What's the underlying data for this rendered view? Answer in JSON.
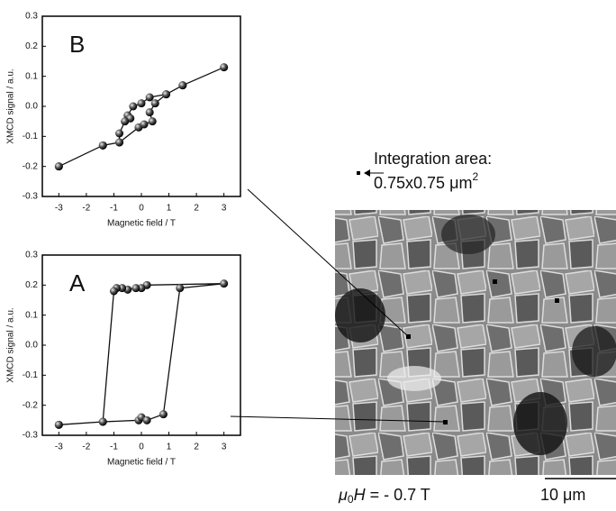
{
  "chart_data": [
    {
      "type": "line",
      "panel_label": "B",
      "x_label": "Magnetic field / T",
      "y_label": "XMCD signal / a.u.",
      "xlim": [
        -3.6,
        3.6
      ],
      "xticks": [
        -3,
        -2,
        -1,
        0,
        1,
        2,
        3
      ],
      "ylim": [
        -0.3,
        0.3
      ],
      "yticks": [
        -0.3,
        -0.2,
        -0.1,
        {
          "value": 0,
          "label": "0.0"
        },
        0.1,
        0.2,
        0.3
      ],
      "series": [
        {
          "color": "#111111",
          "x": [
            -3,
            -1.4,
            -0.8,
            -0.1,
            0.1,
            0.4,
            0.3,
            0.5,
            0.9,
            1.5,
            3,
            1.5,
            0.9,
            0.3,
            0,
            -0.3,
            -0.5,
            -0.4,
            -0.6,
            -0.8,
            -0.8,
            -1.4,
            -3
          ],
          "values": [
            -0.2,
            -0.13,
            -0.12,
            -0.07,
            -0.06,
            -0.05,
            -0.02,
            0.01,
            0.04,
            0.07,
            0.13,
            0.07,
            0.04,
            0.03,
            0.01,
            0.0,
            -0.03,
            -0.04,
            -0.05,
            -0.09,
            -0.12,
            -0.13,
            -0.2
          ]
        }
      ]
    },
    {
      "type": "line",
      "panel_label": "A",
      "x_label": "Magnetic field / T",
      "y_label": "XMCD signal / a.u.",
      "xlim": [
        -3.6,
        3.6
      ],
      "xticks": [
        -3,
        -2,
        -1,
        0,
        1,
        2,
        3
      ],
      "ylim": [
        -0.3,
        0.3
      ],
      "yticks": [
        -0.3,
        -0.2,
        -0.1,
        {
          "value": 0,
          "label": "0.0"
        },
        0.1,
        0.2,
        0.3
      ],
      "series": [
        {
          "color": "#111111",
          "x": [
            -3,
            -1.4,
            -0.1,
            0,
            0.2,
            0.8,
            1.4,
            3,
            0.2,
            0,
            -0.2,
            -0.5,
            -0.7,
            -0.9,
            -1.0,
            -1.4,
            -3
          ],
          "values": [
            -0.265,
            -0.255,
            -0.25,
            -0.24,
            -0.25,
            -0.23,
            0.19,
            0.205,
            0.2,
            0.19,
            0.19,
            0.185,
            0.19,
            0.19,
            0.18,
            -0.255,
            -0.265
          ]
        }
      ]
    }
  ],
  "image": {
    "legend_line1": "Integration area:",
    "legend_line2": "0.75x0.75 μm",
    "legend_sup": "2",
    "field_symbol": "μ",
    "field_sub": "0",
    "field_var": "H",
    "field_rest": " = - 0.7 T",
    "scale_bar": "10 μm"
  }
}
